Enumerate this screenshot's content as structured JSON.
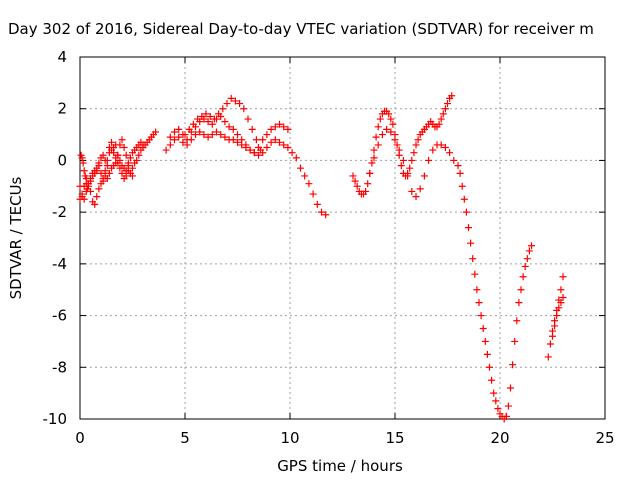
{
  "chart_data": {
    "type": "scatter",
    "title": "Day 302 of 2016, Sidereal Day-to-day VTEC variation (SDTVAR) for receiver m",
    "xlabel": "GPS time / hours",
    "ylabel": "SDTVAR / TECUs",
    "xlim": [
      0,
      25
    ],
    "ylim": [
      -10,
      4
    ],
    "x_ticks": [
      "0",
      "5",
      "10",
      "15",
      "20",
      "25"
    ],
    "y_ticks": [
      "-10",
      "-8",
      "-6",
      "-4",
      "-2",
      "0",
      "2",
      "4"
    ],
    "grid": true,
    "legend": "none",
    "marker": "plus",
    "series_color": "#ff0000",
    "segments": [
      {
        "x": [
          0.0,
          0.1,
          0.2,
          0.3,
          0.4,
          0.5,
          0.6,
          0.7,
          0.8,
          0.9,
          1.0,
          1.1,
          1.2,
          1.3,
          1.4,
          1.5,
          1.6,
          1.7,
          1.8,
          1.9,
          2.0,
          2.1,
          2.2,
          2.3,
          2.4,
          2.5,
          2.6,
          2.7,
          2.8,
          2.9,
          3.0,
          3.1,
          3.2,
          3.3,
          3.4,
          3.5,
          3.6
        ],
        "y": [
          -1.0,
          -1.4,
          -1.5,
          -1.2,
          -0.9,
          -0.7,
          -0.5,
          -0.4,
          -0.3,
          -0.1,
          0.1,
          0.2,
          0.0,
          -0.2,
          0.3,
          0.4,
          0.5,
          0.6,
          0.2,
          0.0,
          -0.2,
          -0.3,
          -0.4,
          -0.1,
          0.1,
          0.3,
          0.4,
          0.5,
          0.6,
          0.7,
          0.5,
          0.6,
          0.7,
          0.8,
          0.9,
          1.0,
          1.1
        ]
      },
      {
        "x": [
          0.0,
          0.1,
          0.2,
          0.3,
          0.4,
          0.5,
          0.6,
          0.7,
          0.8,
          0.9,
          1.0,
          1.1,
          1.2,
          1.3,
          1.4,
          1.5,
          1.6,
          1.7,
          1.8,
          1.9,
          2.0,
          2.1,
          2.2,
          2.3,
          2.4,
          2.5,
          2.6,
          2.7,
          2.8,
          2.9,
          3.0
        ],
        "y": [
          -1.5,
          -1.3,
          -1.0,
          -0.7,
          -0.9,
          -1.2,
          -1.6,
          -1.7,
          -1.4,
          -1.1,
          -0.9,
          -0.8,
          -0.6,
          -0.7,
          -0.5,
          -0.3,
          -0.2,
          0.1,
          -0.1,
          -0.3,
          -0.5,
          -0.7,
          -0.6,
          -0.4,
          -0.5,
          -0.3,
          -0.1,
          0.0,
          0.2,
          0.4,
          0.6
        ]
      },
      {
        "x": [
          0.05,
          0.1,
          0.15,
          0.2,
          0.25,
          0.3,
          0.35,
          0.4,
          0.5,
          0.6,
          0.7,
          0.8,
          0.9,
          1.0,
          1.1,
          1.2,
          1.3,
          1.4,
          1.5,
          1.6,
          1.7,
          1.8,
          1.9,
          2.0,
          2.1,
          2.2,
          2.3,
          2.4,
          2.5
        ],
        "y": [
          0.2,
          0.1,
          -0.1,
          -0.4,
          -0.6,
          -0.9,
          -1.1,
          -1.0,
          -0.8,
          -0.6,
          -0.5,
          -0.4,
          -0.2,
          -0.5,
          -0.7,
          -0.4,
          0.0,
          0.5,
          0.7,
          0.3,
          -0.1,
          0.2,
          0.6,
          0.8,
          0.5,
          0.2,
          -0.2,
          -0.5,
          -0.6
        ]
      },
      {
        "x": [
          4.1,
          4.3,
          4.5,
          4.7,
          4.9,
          5.1,
          5.3,
          5.5,
          5.7,
          5.9,
          6.1,
          6.3,
          6.5,
          6.7,
          6.9,
          7.1,
          7.3,
          7.5,
          7.7,
          7.9,
          8.1,
          8.3,
          8.5,
          8.7,
          8.9,
          9.1,
          9.3,
          9.5,
          9.7,
          9.9,
          10.1,
          10.3,
          10.5,
          10.7,
          10.9,
          11.1,
          11.3,
          11.5,
          11.7
        ],
        "y": [
          0.4,
          0.6,
          0.8,
          0.9,
          0.7,
          0.6,
          0.8,
          1.0,
          1.1,
          1.0,
          0.9,
          1.0,
          1.1,
          1.0,
          0.9,
          0.8,
          0.8,
          0.7,
          0.6,
          0.5,
          0.4,
          0.3,
          0.2,
          0.3,
          0.5,
          0.7,
          0.8,
          0.7,
          0.6,
          0.5,
          0.3,
          0.1,
          -0.3,
          -0.6,
          -0.9,
          -1.3,
          -1.7,
          -2.0,
          -2.1
        ]
      },
      {
        "x": [
          4.3,
          4.5,
          4.7,
          4.9,
          5.1,
          5.3,
          5.5,
          5.7,
          5.9,
          6.1,
          6.3,
          6.5,
          6.7,
          6.9,
          7.1,
          7.3,
          7.5,
          7.7,
          7.9,
          8.1,
          8.3,
          8.5,
          8.7,
          8.9,
          9.1,
          9.3,
          9.5,
          9.7,
          9.9
        ],
        "y": [
          0.9,
          1.1,
          1.2,
          1.0,
          0.8,
          1.1,
          1.3,
          1.5,
          1.6,
          1.5,
          1.4,
          1.6,
          1.7,
          1.5,
          1.3,
          1.2,
          1.0,
          0.8,
          0.6,
          0.4,
          0.3,
          0.5,
          0.8,
          1.0,
          1.2,
          1.3,
          1.4,
          1.3,
          1.2
        ]
      },
      {
        "x": [
          5.0,
          5.2,
          5.4,
          5.6,
          5.8,
          6.0,
          6.2,
          6.4,
          6.6,
          6.8,
          7.0,
          7.2,
          7.4,
          7.6,
          7.8,
          8.0,
          8.2,
          8.4,
          8.6
        ],
        "y": [
          1.0,
          1.2,
          1.4,
          1.6,
          1.7,
          1.8,
          1.7,
          1.6,
          1.8,
          2.0,
          2.2,
          2.4,
          2.3,
          2.2,
          2.0,
          1.6,
          1.2,
          0.8,
          0.4
        ]
      },
      {
        "x": [
          13.0,
          13.1,
          13.2,
          13.3,
          13.4,
          13.5,
          13.6,
          13.7,
          13.8,
          13.9,
          14.0,
          14.1,
          14.2,
          14.3,
          14.4,
          14.5,
          14.6,
          14.7,
          14.8,
          14.9,
          15.0,
          15.1,
          15.2,
          15.3,
          15.4,
          15.5,
          15.6,
          15.7,
          15.8,
          15.9,
          16.0,
          16.1,
          16.2,
          16.3,
          16.4,
          16.5,
          16.6,
          16.7,
          16.8,
          16.9,
          17.0,
          17.1,
          17.2,
          17.3,
          17.4,
          17.5,
          17.6,
          17.7
        ],
        "y": [
          -0.6,
          -0.8,
          -1.0,
          -1.2,
          -1.3,
          -1.3,
          -1.2,
          -0.9,
          -0.5,
          -0.1,
          0.4,
          0.9,
          1.3,
          1.6,
          1.8,
          1.9,
          1.9,
          1.8,
          1.6,
          1.4,
          1.0,
          0.6,
          0.2,
          -0.2,
          -0.5,
          -0.6,
          -0.5,
          -0.3,
          0.0,
          0.3,
          0.6,
          0.8,
          1.0,
          1.1,
          1.2,
          1.3,
          1.4,
          1.5,
          1.4,
          1.3,
          1.3,
          1.4,
          1.6,
          1.8,
          2.0,
          2.2,
          2.4,
          2.5
        ]
      },
      {
        "x": [
          13.8,
          14.0,
          14.2,
          14.4,
          14.6,
          14.8,
          15.0,
          15.2,
          15.4,
          15.6,
          15.8,
          16.0,
          16.2,
          16.4,
          16.6,
          16.8,
          17.0,
          17.2,
          17.4,
          17.6,
          17.8,
          18.0,
          18.1,
          18.2,
          18.3,
          18.4,
          18.5,
          18.6,
          18.7,
          18.8,
          18.9,
          19.0,
          19.1,
          19.2,
          19.3,
          19.4,
          19.5,
          19.6,
          19.7,
          19.8,
          19.9,
          20.0,
          20.1,
          20.2,
          20.3
        ],
        "y": [
          -0.5,
          0.1,
          0.6,
          1.0,
          1.2,
          1.1,
          0.8,
          0.4,
          0.0,
          -0.6,
          -1.2,
          -1.4,
          -1.1,
          -0.6,
          0.0,
          0.4,
          0.6,
          0.6,
          0.5,
          0.3,
          0.0,
          -0.2,
          -0.5,
          -1.0,
          -1.5,
          -2.0,
          -2.6,
          -3.2,
          -3.8,
          -4.4,
          -5.0,
          -5.5,
          -6.0,
          -6.5,
          -7.0,
          -7.5,
          -8.0,
          -8.5,
          -9.0,
          -9.3,
          -9.6,
          -9.8,
          -9.9,
          -10.0,
          -9.9
        ]
      },
      {
        "x": [
          20.3,
          20.4,
          20.5,
          20.6,
          20.7,
          20.8,
          20.9,
          21.0,
          21.1,
          21.2,
          21.3,
          21.4,
          21.5
        ],
        "y": [
          -9.9,
          -9.5,
          -8.8,
          -7.9,
          -7.0,
          -6.2,
          -5.5,
          -5.0,
          -4.5,
          -4.1,
          -3.8,
          -3.5,
          -3.3
        ]
      },
      {
        "x": [
          22.3,
          22.4,
          22.5,
          22.6,
          22.7,
          22.8,
          22.9,
          23.0
        ],
        "y": [
          -7.6,
          -7.1,
          -6.6,
          -6.2,
          -5.8,
          -5.4,
          -5.0,
          -4.5
        ]
      },
      {
        "x": [
          22.5,
          22.6,
          22.7,
          22.8,
          22.9,
          23.0
        ],
        "y": [
          -6.8,
          -6.4,
          -6.0,
          -5.7,
          -5.5,
          -5.3
        ]
      }
    ]
  }
}
